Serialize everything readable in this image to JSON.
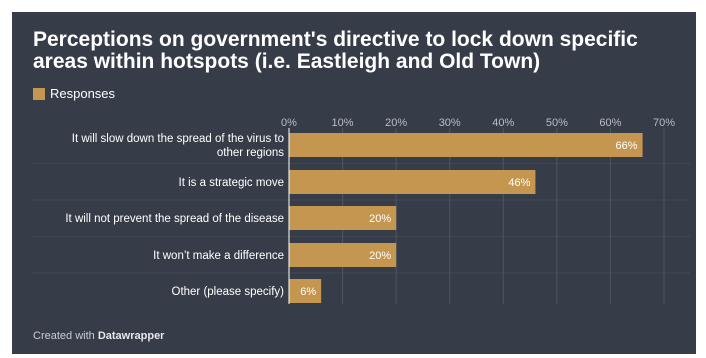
{
  "colors": {
    "bar": "#c5964f",
    "background": "#363d48",
    "grid": "#4e5663",
    "text": "#ffffff",
    "tick": "#b9bec6"
  },
  "footer": {
    "prefix": "Created with",
    "brand": "Datawrapper"
  },
  "chart_data": {
    "type": "bar",
    "orientation": "horizontal",
    "title": "Perceptions on government's directive to lock down specific areas within hotspots (i.e. Eastleigh and Old Town)",
    "legend": [
      "Responses"
    ],
    "legend_position": "top-left",
    "categories": [
      [
        "It will slow down the spread of the virus to",
        "other regions"
      ],
      [
        "It is a strategic move"
      ],
      [
        "It will not prevent the spread of the disease"
      ],
      [
        "It won’t make a difference"
      ],
      [
        "Other (please specify)"
      ]
    ],
    "series": [
      {
        "name": "Responses",
        "values": [
          66,
          46,
          20,
          20,
          6
        ]
      }
    ],
    "data_labels": [
      "66%",
      "46%",
      "20%",
      "20%",
      "6%"
    ],
    "xlim": [
      0,
      70
    ],
    "x_ticks": [
      "0%",
      "10%",
      "20%",
      "30%",
      "40%",
      "50%",
      "60%",
      "70%"
    ],
    "grid": true
  }
}
